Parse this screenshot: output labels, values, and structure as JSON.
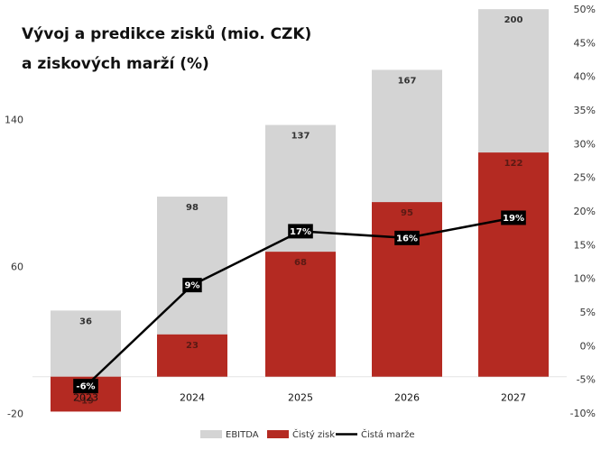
{
  "chart_data": {
    "type": "bar",
    "title_line1": "Vývoj a predikce zisků (mio. CZK)",
    "title_line2": "a ziskových marží (%)",
    "categories": [
      "2023",
      "2024",
      "2025",
      "2026",
      "2027"
    ],
    "series": [
      {
        "name": "EBITDA",
        "values": [
          36,
          98,
          137,
          167,
          200
        ],
        "labels": [
          "36",
          "98",
          "137",
          "167",
          "200"
        ],
        "color": "#d4d4d4",
        "label_color": "#333333"
      },
      {
        "name": "Čistý zisk",
        "values": [
          -19,
          23,
          68,
          95,
          122
        ],
        "labels": [
          "-19",
          "23",
          "68",
          "95",
          "122"
        ],
        "color": "#b42a22",
        "label_color": "#5a1a14"
      },
      {
        "name": "Čistá marže",
        "values": [
          -6,
          9,
          17,
          16,
          19
        ],
        "labels": [
          "-6%",
          "9%",
          "17%",
          "16%",
          "19%"
        ],
        "color": "#000000",
        "axis": "right"
      }
    ],
    "y_left": {
      "ticks": [
        "-20",
        "60",
        "140"
      ],
      "tick_values": [
        -20,
        60,
        140
      ],
      "range": [
        -20,
        220
      ]
    },
    "y_right": {
      "ticks": [
        "-10%",
        "-5%",
        "0%",
        "5%",
        "10%",
        "15%",
        "20%",
        "25%",
        "30%",
        "35%",
        "40%",
        "45%",
        "50%"
      ],
      "tick_values": [
        -10,
        -5,
        0,
        5,
        10,
        15,
        20,
        25,
        30,
        35,
        40,
        45,
        50
      ],
      "range": [
        -10,
        50
      ]
    },
    "legend": [
      {
        "name": "EBITDA",
        "kind": "box",
        "color": "#d4d4d4"
      },
      {
        "name": "Čistý zisk",
        "kind": "box",
        "color": "#b42a22"
      },
      {
        "name": "Čistá marže",
        "kind": "line",
        "color": "#000000"
      }
    ],
    "legend_position": "bottom",
    "grid": false
  }
}
